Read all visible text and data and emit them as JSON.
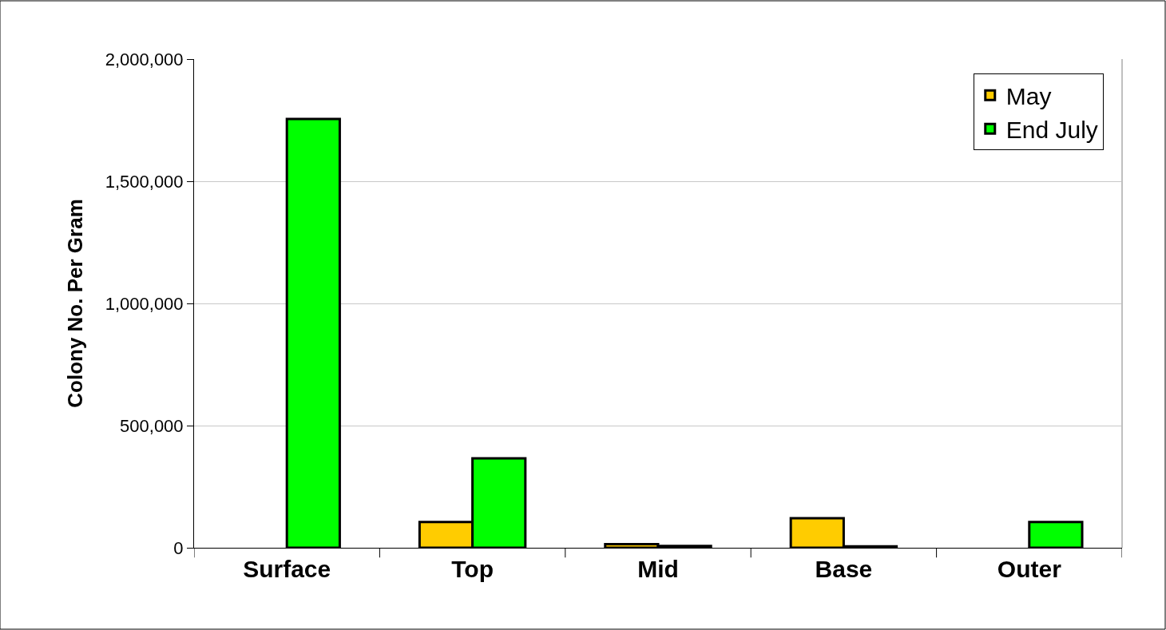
{
  "chart_data": {
    "type": "bar",
    "ylabel": "Colony No. Per Gram",
    "categories": [
      "Surface",
      "Top",
      "Mid",
      "Base",
      "Outer"
    ],
    "series": [
      {
        "name": "May",
        "color": "#ffcc00",
        "values": [
          null,
          105000,
          15000,
          121000,
          null
        ]
      },
      {
        "name": "End July",
        "color": "#00ff00",
        "values": [
          1755000,
          366000,
          7000,
          6000,
          105000
        ]
      }
    ],
    "ylim": [
      0,
      2000000
    ],
    "yticks": [
      {
        "value": 0,
        "label": "0"
      },
      {
        "value": 500000,
        "label": "500,000"
      },
      {
        "value": 1000000,
        "label": "1,000,000"
      },
      {
        "value": 1500000,
        "label": "1,500,000"
      },
      {
        "value": 2000000,
        "label": "2,000,000"
      }
    ],
    "grid": "y",
    "legend": "top right"
  }
}
